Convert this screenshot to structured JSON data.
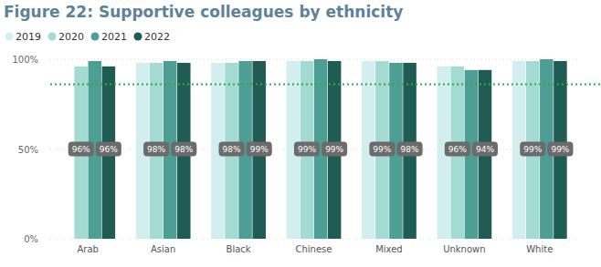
{
  "chart_data": {
    "type": "bar",
    "title": "Figure 22: Supportive colleagues by ethnicity",
    "categories": [
      "Arab",
      "Asian",
      "Black",
      "Chinese",
      "Mixed",
      "Unknown",
      "White"
    ],
    "series": [
      {
        "name": "2019",
        "color": "#d3eeee",
        "values": [
          null,
          98,
          98,
          99,
          99,
          96,
          99
        ]
      },
      {
        "name": "2020",
        "color": "#a3dad2",
        "values": [
          96,
          98,
          98,
          99,
          99,
          96,
          99
        ],
        "data_labels": true,
        "value_labels": [
          "96%",
          "98%",
          "98%",
          "99%",
          "99%",
          "96%",
          "99%"
        ]
      },
      {
        "name": "2021",
        "color": "#4d9e94",
        "values": [
          99,
          99,
          99,
          100,
          98,
          94,
          100
        ]
      },
      {
        "name": "2022",
        "color": "#1e5c54",
        "values": [
          96,
          98,
          99,
          99,
          98,
          94,
          99
        ],
        "data_labels": true,
        "value_labels": [
          "96%",
          "98%",
          "99%",
          "99%",
          "98%",
          "94%",
          "99%"
        ]
      }
    ],
    "target": 86,
    "ylim": [
      0,
      100
    ],
    "yticks": [
      {
        "value": 0,
        "label": "0%"
      },
      {
        "value": 50,
        "label": "50%"
      },
      {
        "value": 100,
        "label": "100%"
      }
    ],
    "grid": true,
    "legend": "top-left"
  }
}
